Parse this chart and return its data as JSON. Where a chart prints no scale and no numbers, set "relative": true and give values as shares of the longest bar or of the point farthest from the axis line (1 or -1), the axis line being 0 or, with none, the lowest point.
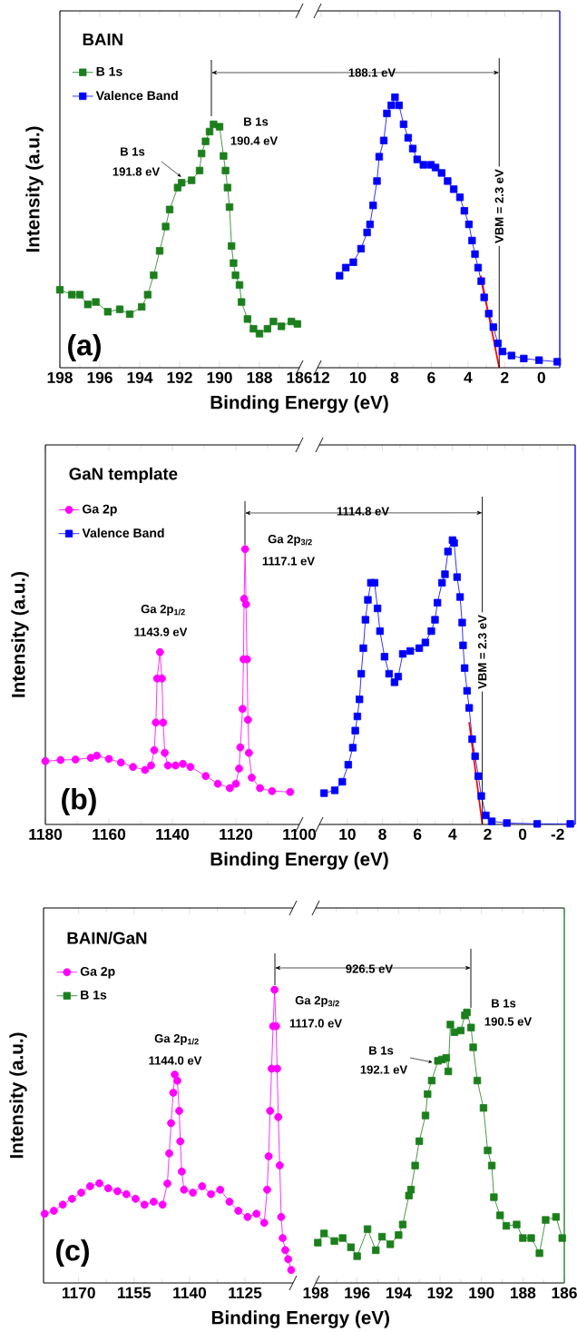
{
  "chart_data": [
    {
      "type": "line",
      "relative": true,
      "title": "BAIN",
      "xlabel": "Binding Energy (eV)",
      "ylabel": "Intensity (a.u.)",
      "xlim": [
        198,
        186
      ],
      "xticks": [
        198,
        196,
        194,
        192,
        190,
        188,
        186
      ],
      "legend": "top left",
      "series": [
        {
          "name": "B 1s",
          "color": "#1b7f1b",
          "marker": "square",
          "x": [
            198,
            197.4,
            197.0,
            196.6,
            196.2,
            195.6,
            195.0,
            194.5,
            193.9,
            193.6,
            193.3,
            193.0,
            192.7,
            192.5,
            192.1,
            191.9,
            191.4,
            191.0,
            190.9,
            190.7,
            190.5,
            190.3,
            190.0,
            189.8,
            189.7,
            189.6,
            189.5,
            189.4,
            189.3,
            189.2,
            189.0,
            188.9,
            188.6,
            188.3,
            188.0,
            187.6,
            187.3,
            186.9,
            186.4,
            186.1
          ],
          "values": [
            0.32,
            0.3,
            0.3,
            0.26,
            0.27,
            0.23,
            0.24,
            0.22,
            0.25,
            0.3,
            0.38,
            0.48,
            0.58,
            0.65,
            0.74,
            0.76,
            0.77,
            0.81,
            0.88,
            0.93,
            0.97,
            1.0,
            0.99,
            0.87,
            0.81,
            0.74,
            0.66,
            0.5,
            0.43,
            0.38,
            0.34,
            0.27,
            0.2,
            0.16,
            0.14,
            0.16,
            0.19,
            0.17,
            0.19,
            0.18
          ]
        }
      ],
      "annotations": [
        "(a)",
        "B 1s",
        "191.8 eV",
        "B 1s",
        "190.4 eV"
      ]
    },
    {
      "type": "line",
      "relative": true,
      "xlim": [
        12.2,
        -1
      ],
      "xticks": [
        12,
        10,
        8,
        6,
        4,
        2,
        0
      ],
      "legend": "top left",
      "series": [
        {
          "name": "Valence Band",
          "color": "#0000ff",
          "marker": "square",
          "x": [
            11.0,
            10.66,
            10.25,
            9.83,
            9.5,
            9.34,
            9.17,
            8.96,
            8.84,
            8.59,
            8.42,
            8.18,
            7.98,
            7.76,
            7.51,
            7.26,
            7.01,
            6.77,
            6.43,
            6.02,
            5.77,
            5.44,
            5.11,
            4.78,
            4.44,
            4.2,
            3.95,
            3.78,
            3.62,
            3.45,
            3.28,
            3.12,
            2.87,
            2.62,
            2.37,
            2.12,
            1.63,
            0.96,
            0.13,
            -0.86
          ],
          "values": [
            0.34,
            0.37,
            0.39,
            0.44,
            0.5,
            0.53,
            0.6,
            0.69,
            0.78,
            0.84,
            0.94,
            0.97,
            1.0,
            0.97,
            0.9,
            0.85,
            0.81,
            0.77,
            0.75,
            0.75,
            0.74,
            0.72,
            0.69,
            0.66,
            0.63,
            0.58,
            0.53,
            0.47,
            0.42,
            0.37,
            0.32,
            0.26,
            0.2,
            0.15,
            0.09,
            0.06,
            0.045,
            0.034,
            0.028,
            0.022
          ]
        },
        {
          "type": "line",
          "color": "#ff0000",
          "marker": "none",
          "x": [
            3.3,
            2.3
          ],
          "values": [
            0.34,
            0
          ]
        }
      ],
      "ref_lines": [
        {
          "axis": "x",
          "value": 2.3,
          "label": "VBM = 2.3 eV"
        }
      ],
      "annotations": [
        "188.1 eV"
      ]
    },
    {
      "type": "line",
      "relative": true,
      "title": "GaN template",
      "xlabel": "Binding Energy (eV)",
      "ylabel": "Intensity (a.u.)",
      "xlim": [
        1180,
        1100
      ],
      "xticks": [
        1180,
        1160,
        1140,
        1120,
        1100
      ],
      "legend": "top left",
      "series": [
        {
          "name": "Ga 2p",
          "color": "#ff00ff",
          "marker": "circle",
          "x": [
            1180,
            1175.2,
            1170.5,
            1165.7,
            1163.8,
            1160,
            1156.2,
            1152.4,
            1148.6,
            1146.7,
            1145.7,
            1145.2,
            1144.8,
            1143.9,
            1143.3,
            1142.9,
            1142.4,
            1141.4,
            1139,
            1136.7,
            1134.3,
            1129.5,
            1125.7,
            1121.9,
            1120,
            1119,
            1118.6,
            1117.9,
            1117.6,
            1117.4,
            1117.1,
            1116.8,
            1116.5,
            1116.2,
            1115.9,
            1115,
            1112.4,
            1108.6,
            1102.9
          ],
          "values": [
            0.23,
            0.234,
            0.236,
            0.242,
            0.25,
            0.238,
            0.225,
            0.209,
            0.198,
            0.214,
            0.27,
            0.37,
            0.53,
            0.626,
            0.53,
            0.37,
            0.26,
            0.214,
            0.214,
            0.22,
            0.209,
            0.176,
            0.148,
            0.132,
            0.148,
            0.203,
            0.28,
            0.42,
            0.6,
            0.82,
            1.0,
            0.8,
            0.6,
            0.38,
            0.26,
            0.17,
            0.132,
            0.121,
            0.118
          ]
        }
      ],
      "annotations": [
        "(b)",
        "Ga 2p$_{1/2}$",
        "1143.9 eV",
        "Ga 2p$_{3/2}$",
        "1117.1 eV"
      ]
    },
    {
      "type": "line",
      "relative": true,
      "xlim": [
        11.6,
        -3
      ],
      "xticks": [
        10,
        8,
        6,
        4,
        2,
        0,
        -2
      ],
      "legend": "top left",
      "series": [
        {
          "name": "Valence Band",
          "color": "#0000ff",
          "marker": "square",
          "x": [
            11.33,
            10.72,
            10.29,
            9.95,
            9.69,
            9.55,
            9.43,
            9.31,
            9.21,
            9.09,
            8.97,
            8.83,
            8.66,
            8.45,
            8.28,
            8.14,
            7.88,
            7.62,
            7.31,
            7.1,
            6.84,
            6.41,
            5.9,
            5.55,
            5.21,
            5.0,
            4.86,
            4.6,
            4.43,
            4.26,
            4.0,
            3.91,
            3.74,
            3.57,
            3.45,
            3.4,
            3.31,
            3.17,
            3.05,
            2.88,
            2.71,
            2.53,
            2.36,
            2.1,
            1.76,
            0.9,
            -0.83,
            -2.72
          ],
          "values": [
            0.11,
            0.12,
            0.15,
            0.21,
            0.27,
            0.33,
            0.38,
            0.44,
            0.53,
            0.62,
            0.72,
            0.79,
            0.85,
            0.85,
            0.76,
            0.68,
            0.59,
            0.53,
            0.5,
            0.52,
            0.6,
            0.61,
            0.62,
            0.64,
            0.68,
            0.72,
            0.78,
            0.85,
            0.88,
            0.96,
            1.0,
            0.99,
            0.87,
            0.8,
            0.71,
            0.63,
            0.55,
            0.47,
            0.41,
            0.3,
            0.24,
            0.17,
            0.1,
            0.032,
            0.011,
            0.005,
            0.002,
            0.002
          ]
        },
        {
          "type": "line",
          "color": "#ff0000",
          "marker": "none",
          "x": [
            3.05,
            2.3
          ],
          "values": [
            0.36,
            0
          ]
        }
      ],
      "ref_lines": [
        {
          "axis": "x",
          "value": 2.3,
          "label": "VBM = 2.3 eV"
        }
      ],
      "annotations": [
        "1114.8 eV"
      ]
    },
    {
      "type": "line",
      "relative": true,
      "title": "BAIN/GaN",
      "xlabel": "Binding Energy (eV)",
      "ylabel": "Intensity (a.u.)",
      "xlim": [
        1179.5,
        1112
      ],
      "xticks": [
        1170,
        1155,
        1140,
        1125
      ],
      "legend": "top left",
      "series": [
        {
          "name": "Ga 2p",
          "color": "#ff00ff",
          "marker": "circle",
          "x": [
            1179.2,
            1176.7,
            1174.3,
            1171.8,
            1169.3,
            1166.9,
            1164.4,
            1162,
            1159.5,
            1157.1,
            1154.6,
            1152.2,
            1149.7,
            1147.3,
            1146,
            1145.5,
            1145,
            1144.4,
            1144,
            1143.3,
            1142.8,
            1142.5,
            1142.1,
            1141.5,
            1139.1,
            1136.6,
            1134.2,
            1131.7,
            1129.2,
            1126.8,
            1124.3,
            1121.9,
            1119.8,
            1119,
            1118.6,
            1118.2,
            1117.8,
            1117.4,
            1117,
            1116.6,
            1116.3,
            1116,
            1115.6,
            1115.2,
            1114.8,
            1114.1,
            1113.3,
            1112.5
          ],
          "values": [
            0.236,
            0.246,
            0.267,
            0.287,
            0.308,
            0.33,
            0.34,
            0.323,
            0.313,
            0.303,
            0.287,
            0.267,
            0.277,
            0.267,
            0.339,
            0.442,
            0.545,
            0.649,
            0.711,
            0.69,
            0.587,
            0.483,
            0.38,
            0.318,
            0.308,
            0.33,
            0.303,
            0.318,
            0.277,
            0.246,
            0.225,
            0.236,
            0.205,
            0.318,
            0.432,
            0.587,
            0.731,
            0.876,
            1.0,
            0.876,
            0.731,
            0.566,
            0.401,
            0.225,
            0.153,
            0.112,
            0.081,
            0.044
          ]
        }
      ],
      "annotations": [
        "(c)",
        "Ga 2p$_{1/2}$",
        "1144.0 eV",
        "Ga 2p$_{3/2}$",
        "1117.0 eV"
      ]
    },
    {
      "type": "line",
      "relative": true,
      "xlim": [
        198,
        186
      ],
      "xticks": [
        198,
        196,
        194,
        192,
        190,
        188,
        186
      ],
      "legend": "top left",
      "series": [
        {
          "name": "B 1s",
          "color": "#1b7f1b",
          "marker": "square",
          "x": [
            197.9,
            197.6,
            197.1,
            196.7,
            196.3,
            196,
            195.5,
            195.1,
            194.8,
            194.4,
            194,
            193.8,
            193.5,
            193.4,
            193.2,
            193,
            192.7,
            192.6,
            192.4,
            192.1,
            191.9,
            191.7,
            191.6,
            191.5,
            191.3,
            191,
            190.8,
            190.7,
            190.5,
            190.4,
            190.2,
            189.9,
            189.7,
            189.5,
            189.4,
            189.1,
            188.8,
            188.3,
            188,
            187.6,
            187.2,
            186.9,
            186.4,
            186.1
          ],
          "values": [
            0.149,
            0.183,
            0.155,
            0.166,
            0.132,
            0.099,
            0.199,
            0.121,
            0.171,
            0.143,
            0.177,
            0.216,
            0.323,
            0.345,
            0.434,
            0.524,
            0.619,
            0.698,
            0.748,
            0.821,
            0.826,
            0.832,
            0.782,
            0.955,
            0.927,
            0.933,
            0.989,
            1.0,
            0.944,
            0.871,
            0.748,
            0.647,
            0.49,
            0.434,
            0.317,
            0.25,
            0.211,
            0.216,
            0.166,
            0.166,
            0.11,
            0.233,
            0.244,
            0.166
          ]
        }
      ],
      "annotations": [
        "926.5 eV",
        "B 1s",
        "192.1 eV",
        "B 1s",
        "190.5 eV"
      ]
    }
  ]
}
